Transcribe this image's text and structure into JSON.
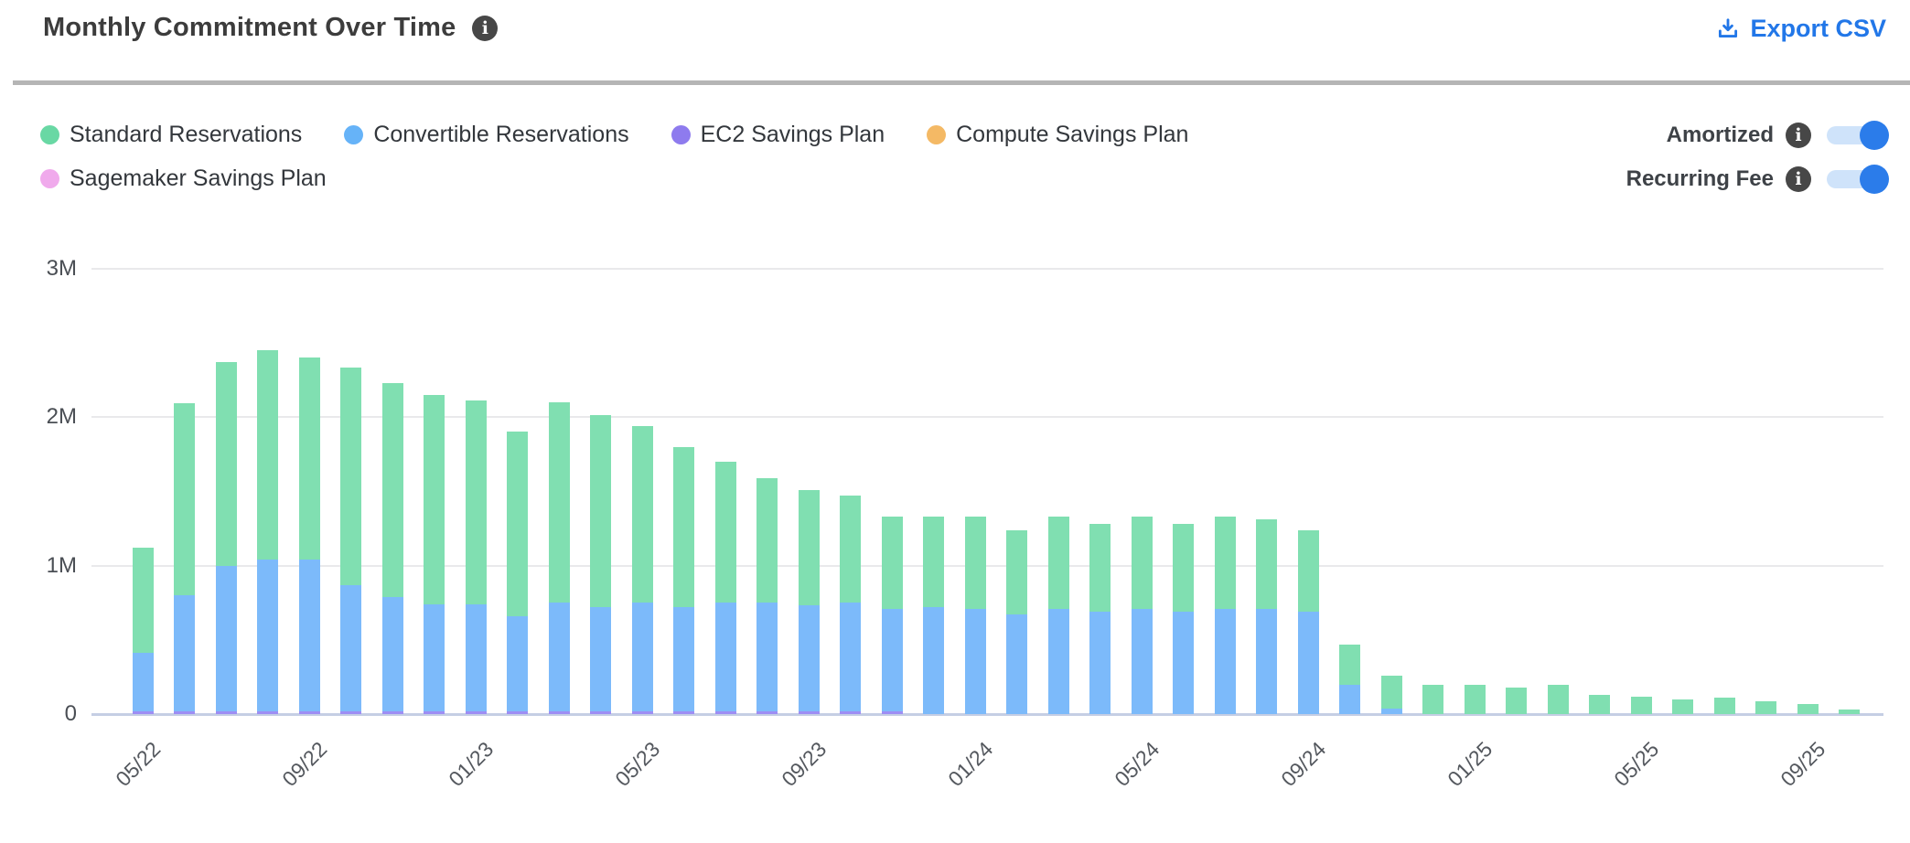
{
  "header": {
    "title": "Monthly Commitment Over Time",
    "export_label": "Export CSV"
  },
  "legend": {
    "items": [
      {
        "label": "Standard Reservations",
        "color": "#69d8a4"
      },
      {
        "label": "Convertible Reservations",
        "color": "#66b3f8"
      },
      {
        "label": "EC2 Savings Plan",
        "color": "#8e7bee"
      },
      {
        "label": "Compute Savings Plan",
        "color": "#f4b965"
      },
      {
        "label": "Sagemaker Savings Plan",
        "color": "#f0aaec"
      }
    ]
  },
  "controls": {
    "toggles": [
      {
        "label": "Amortized",
        "state": "on"
      },
      {
        "label": "Recurring Fee",
        "state": "on"
      }
    ]
  },
  "colors": {
    "accent_blue": "#2277e8",
    "toggle_on": "#2b7cea",
    "toggle_track": "#cfe3fa",
    "info_badge": "#474747",
    "gridline": "#e9e9eb",
    "zero_line": "#c5cee4"
  },
  "chart_data": {
    "type": "bar",
    "stacked": true,
    "title": "Monthly Commitment Over Time",
    "xlabel": "",
    "ylabel": "",
    "ylim_millions": [
      0,
      3.2
    ],
    "grid": true,
    "legend_position": "top-left",
    "y_ticks": [
      {
        "label": "0",
        "value": 0
      },
      {
        "label": "1M",
        "value": 1
      },
      {
        "label": "2M",
        "value": 2
      },
      {
        "label": "3M",
        "value": 3
      }
    ],
    "x_tick_every": 4,
    "x": [
      "05/22",
      "06/22",
      "07/22",
      "08/22",
      "09/22",
      "10/22",
      "11/22",
      "12/22",
      "01/23",
      "02/23",
      "03/23",
      "04/23",
      "05/23",
      "06/23",
      "07/23",
      "08/23",
      "09/23",
      "10/23",
      "11/23",
      "12/23",
      "01/24",
      "02/24",
      "03/24",
      "04/24",
      "05/24",
      "06/24",
      "07/24",
      "08/24",
      "09/24",
      "10/24",
      "11/24",
      "12/24",
      "01/25",
      "02/25",
      "03/25",
      "04/25",
      "05/25",
      "06/25",
      "07/25",
      "08/25",
      "09/25",
      "10/25"
    ],
    "unit": "millions USD",
    "series": [
      {
        "name": "EC2 Savings Plan",
        "color": "#9e8ef4",
        "values": [
          0.02,
          0.02,
          0.02,
          0.02,
          0.02,
          0.02,
          0.02,
          0.02,
          0.02,
          0.02,
          0.02,
          0.02,
          0.02,
          0.02,
          0.02,
          0.02,
          0.02,
          0.02,
          0.02,
          0,
          0,
          0,
          0,
          0,
          0,
          0,
          0,
          0,
          0,
          0,
          0,
          0,
          0,
          0,
          0,
          0,
          0,
          0,
          0,
          0,
          0,
          0
        ]
      },
      {
        "name": "Convertible Reservations",
        "color": "#7cbafa",
        "values": [
          0.39,
          0.78,
          0.98,
          1.02,
          1.02,
          0.85,
          0.77,
          0.72,
          0.72,
          0.64,
          0.73,
          0.7,
          0.73,
          0.7,
          0.73,
          0.73,
          0.71,
          0.73,
          0.69,
          0.72,
          0.71,
          0.67,
          0.71,
          0.69,
          0.71,
          0.69,
          0.71,
          0.71,
          0.69,
          0.2,
          0.04,
          0,
          0,
          0,
          0,
          0,
          0,
          0,
          0,
          0,
          0,
          0
        ]
      },
      {
        "name": "Standard Reservations",
        "color": "#80dfb1",
        "values": [
          0.71,
          1.29,
          1.37,
          1.41,
          1.36,
          1.46,
          1.44,
          1.41,
          1.37,
          1.24,
          1.35,
          1.29,
          1.19,
          1.08,
          0.95,
          0.84,
          0.78,
          0.72,
          0.62,
          0.61,
          0.62,
          0.57,
          0.62,
          0.59,
          0.62,
          0.59,
          0.62,
          0.6,
          0.55,
          0.27,
          0.22,
          0.2,
          0.2,
          0.18,
          0.2,
          0.13,
          0.12,
          0.1,
          0.11,
          0.085,
          0.065,
          0.03
        ]
      },
      {
        "name": "Compute Savings Plan",
        "color": "#f4b965",
        "values": [
          0,
          0,
          0,
          0,
          0,
          0,
          0,
          0,
          0,
          0,
          0,
          0,
          0,
          0,
          0,
          0,
          0,
          0,
          0,
          0,
          0,
          0,
          0,
          0,
          0,
          0,
          0,
          0,
          0,
          0,
          0,
          0,
          0,
          0,
          0,
          0,
          0,
          0,
          0,
          0,
          0,
          0
        ]
      },
      {
        "name": "Sagemaker Savings Plan",
        "color": "#f0aaec",
        "values": [
          0,
          0,
          0,
          0,
          0,
          0,
          0,
          0,
          0,
          0,
          0,
          0,
          0,
          0,
          0,
          0,
          0,
          0,
          0,
          0,
          0,
          0,
          0,
          0,
          0,
          0,
          0,
          0,
          0,
          0,
          0,
          0,
          0,
          0,
          0,
          0,
          0,
          0,
          0,
          0,
          0,
          0
        ]
      }
    ]
  }
}
